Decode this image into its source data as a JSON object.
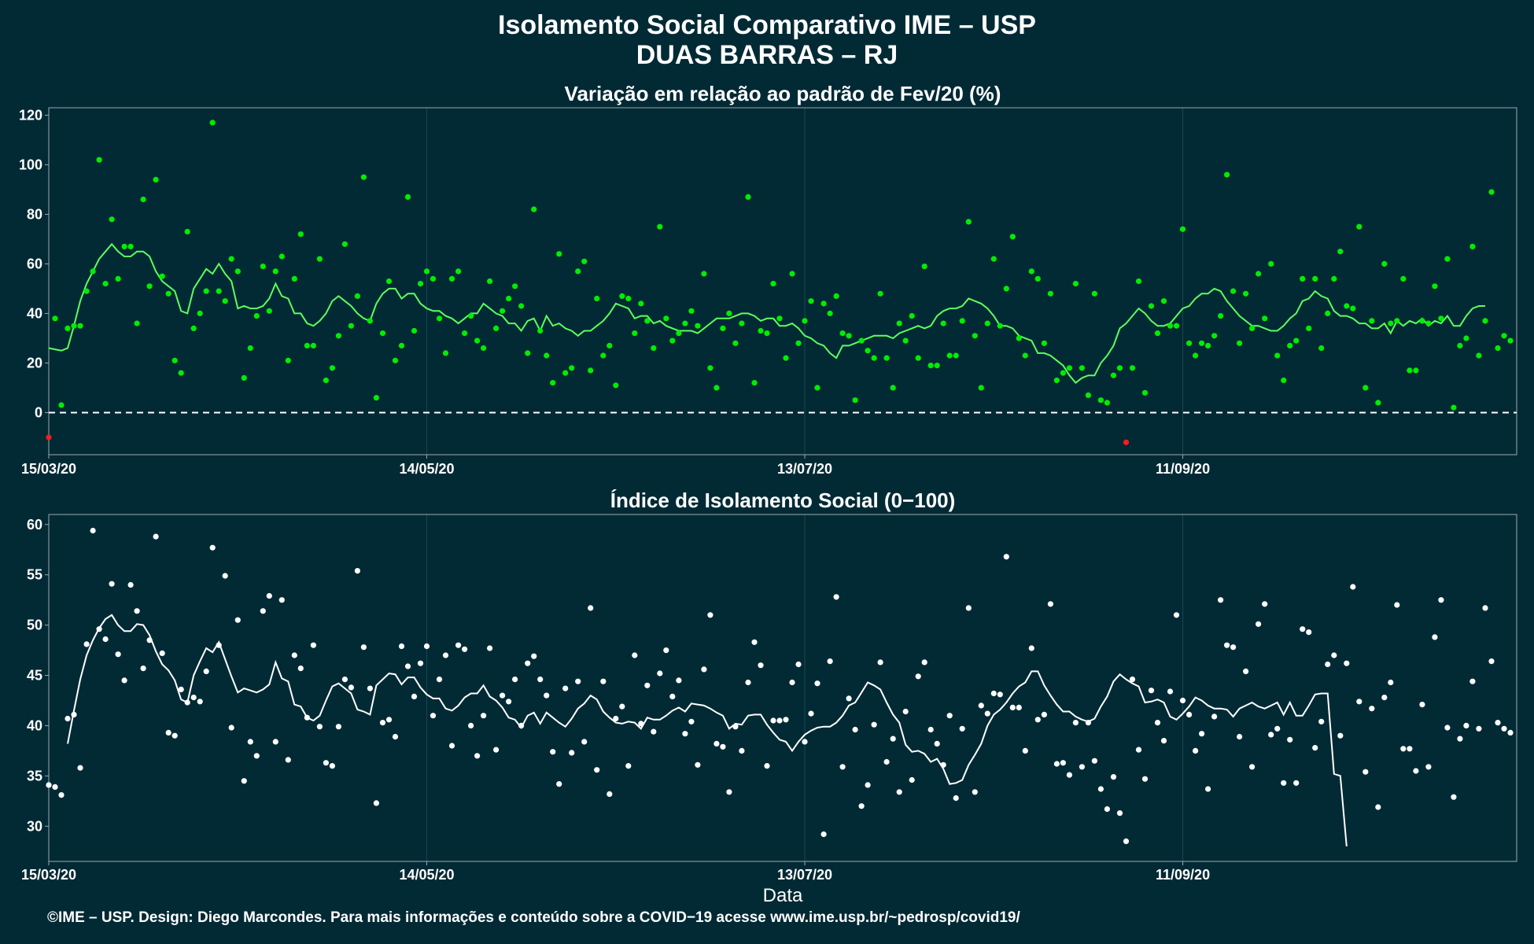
{
  "title": "Isolamento Social Comparativo IME – USP",
  "subtitle": "DUAS BARRAS – RJ",
  "footer": "©IME – USP. Design: Diego Marcondes. Para mais informações e conteúdo sobre a COVID−19 acesse www.ime.usp.br/~pedrosp/covid19/",
  "colors": {
    "background": "#022a35",
    "grid": "#1b4752",
    "frame": "#9aa9ad",
    "variation_points": "#00ee00",
    "variation_line": "#5cff5c",
    "negative_points": "#ff1a1a",
    "index_points": "#ffffff",
    "index_line": "#ffffff",
    "zero_line": "#ffffff"
  },
  "chart_data": [
    {
      "type": "scatter",
      "title": "Variação em relação ao padrão de Fev/20 (%)",
      "xlabel": "",
      "ylabel": "",
      "x_start_date": "15/03/20",
      "x_tick_labels": [
        "15/03/20",
        "14/05/20",
        "13/07/20",
        "11/09/20"
      ],
      "x_tick_days": [
        0,
        60,
        120,
        180
      ],
      "xlim_days": [
        0,
        233
      ],
      "yticks": [
        0,
        20,
        40,
        60,
        80,
        100,
        120
      ],
      "ylim": [
        -17,
        123
      ],
      "reference_line": 0,
      "grid": true,
      "series": [
        {
          "name": "",
          "kind": "points",
          "values": [
            -10,
            38,
            3,
            34,
            35,
            35,
            49,
            57,
            102,
            52,
            78,
            54,
            67,
            67,
            36,
            86,
            51,
            94,
            55,
            48,
            21,
            16,
            73,
            34,
            40,
            49,
            117,
            49,
            45,
            62,
            57,
            14,
            26,
            39,
            59,
            41,
            57,
            63,
            21,
            54,
            72,
            27,
            27,
            62,
            13,
            18,
            31,
            68,
            35,
            47,
            95,
            37,
            6,
            32,
            53,
            21,
            27,
            87,
            33,
            52,
            57,
            54,
            38,
            24,
            54,
            57,
            32,
            39,
            29,
            26,
            53,
            34,
            41,
            46,
            51,
            43,
            24,
            82,
            33,
            23,
            12,
            64,
            16,
            18,
            57,
            61,
            17,
            46,
            23,
            27,
            11,
            47,
            46,
            32,
            44,
            37,
            26,
            75,
            38,
            29,
            32,
            36,
            41,
            35,
            56,
            18,
            10,
            34,
            40,
            28,
            36,
            87,
            12,
            33,
            32,
            52,
            38,
            22,
            56,
            28,
            37,
            45,
            10,
            44,
            40,
            47,
            32,
            31,
            5,
            29,
            25,
            22,
            48,
            22,
            10,
            36,
            29,
            39,
            22,
            59,
            19,
            19,
            36,
            23,
            23,
            37,
            77,
            31,
            10,
            36,
            62,
            35,
            50,
            71,
            30,
            23,
            57,
            54,
            28,
            48,
            13,
            16,
            18,
            52,
            18,
            7,
            48,
            5,
            4,
            15,
            18,
            -12,
            18,
            53,
            8,
            43,
            32,
            45,
            35,
            35,
            74,
            28,
            23,
            28,
            27,
            31,
            39,
            96,
            49,
            28,
            48,
            34,
            56,
            38,
            60,
            23,
            13,
            27,
            29,
            54,
            34,
            54,
            26,
            40,
            54,
            65,
            43,
            42,
            75,
            10,
            37,
            4,
            60,
            36,
            37,
            54,
            17,
            17,
            37,
            36,
            51,
            38,
            62,
            2,
            27,
            30,
            67,
            23,
            37,
            89,
            26,
            31,
            29
          ]
        },
        {
          "name": "",
          "kind": "moving_average",
          "values": [
            26,
            25.5,
            25,
            26,
            35,
            45,
            52,
            57,
            62,
            65,
            68,
            65,
            63,
            63,
            65,
            65,
            63,
            57,
            53,
            51,
            49,
            41,
            40,
            50,
            54,
            58,
            56,
            60,
            56,
            53,
            42,
            43,
            42,
            42,
            43,
            46,
            52,
            47,
            46,
            40,
            40,
            36,
            35,
            37,
            40,
            45,
            47,
            45,
            43,
            40,
            38,
            37,
            44,
            48,
            50,
            50,
            46,
            48,
            48,
            44,
            42,
            41,
            41,
            39,
            38,
            36,
            38,
            40,
            40,
            44,
            42,
            40,
            39,
            36,
            36,
            33,
            37,
            38,
            33,
            39,
            35,
            36,
            34,
            33,
            31,
            33,
            33,
            35,
            37,
            40,
            44,
            43,
            42,
            38,
            39,
            39,
            36,
            37,
            35,
            34,
            33,
            33,
            33,
            32,
            34,
            36,
            38,
            38,
            38,
            39,
            40,
            40,
            39,
            37,
            38,
            38,
            35,
            35,
            36,
            34,
            31,
            30,
            28,
            27,
            24,
            22,
            27,
            27,
            28,
            29,
            30,
            31,
            31,
            31,
            30,
            32,
            33,
            34,
            35,
            34,
            35,
            39,
            41,
            42,
            42,
            43,
            46,
            45,
            44,
            42,
            39,
            35,
            35,
            34,
            31,
            30,
            29,
            24,
            24,
            23,
            21,
            19,
            15,
            12,
            14,
            15,
            15,
            20,
            23,
            27,
            34,
            36,
            39,
            42,
            40,
            37,
            35,
            35,
            36,
            39,
            42,
            43,
            46,
            48,
            48,
            50,
            49,
            45,
            42,
            39,
            37,
            35,
            35,
            34,
            33,
            33,
            35,
            38,
            40,
            45,
            46,
            49,
            47,
            46,
            41,
            39,
            39,
            38,
            36,
            36,
            34,
            34,
            36,
            32,
            37,
            35,
            37,
            36,
            38,
            35,
            37,
            36,
            39,
            35,
            35,
            39,
            42,
            43,
            43
          ]
        }
      ]
    },
    {
      "type": "scatter",
      "title": "Índice de Isolamento Social (0−100)",
      "xlabel": "Data",
      "ylabel": "",
      "x_start_date": "15/03/20",
      "x_tick_labels": [
        "15/03/20",
        "14/05/20",
        "13/07/20",
        "11/09/20"
      ],
      "x_tick_days": [
        0,
        60,
        120,
        180
      ],
      "xlim_days": [
        0,
        233
      ],
      "yticks": [
        30,
        35,
        40,
        45,
        50,
        55,
        60
      ],
      "ylim": [
        26.5,
        61
      ],
      "grid": true,
      "series": [
        {
          "name": "",
          "kind": "points",
          "values": [
            34.1,
            33.9,
            33.1,
            40.7,
            41.1,
            35.8,
            48.1,
            59.4,
            49.6,
            48.6,
            54.1,
            47.1,
            44.5,
            54.0,
            51.4,
            45.7,
            48.5,
            58.8,
            47.2,
            39.3,
            39.0,
            43.6,
            42.3,
            42.8,
            42.4,
            45.4,
            57.7,
            48.0,
            54.9,
            39.8,
            50.5,
            34.5,
            38.4,
            37.0,
            51.4,
            52.9,
            38.4,
            52.5,
            36.6,
            47.0,
            45.7,
            40.8,
            48.0,
            39.9,
            36.3,
            36.0,
            39.9,
            44.6,
            43.8,
            55.4,
            47.8,
            43.7,
            32.3,
            40.3,
            40.6,
            38.9,
            47.9,
            45.9,
            42.9,
            46.2,
            47.9,
            41.0,
            44.6,
            47.0,
            38.0,
            48.0,
            47.6,
            40.0,
            37.0,
            41.0,
            47.7,
            37.6,
            43.0,
            42.4,
            44.6,
            40.0,
            46.2,
            46.9,
            44.6,
            43.0,
            37.4,
            34.2,
            43.7,
            37.3,
            44.4,
            38.4,
            51.7,
            35.6,
            44.4,
            33.2,
            40.7,
            41.9,
            36.0,
            47.0,
            40.2,
            44.0,
            39.4,
            45.2,
            47.5,
            42.9,
            44.5,
            39.2,
            40.4,
            36.1,
            45.6,
            51.0,
            38.2,
            37.9,
            33.4,
            39.9,
            37.5,
            44.3,
            48.3,
            46.0,
            36.0,
            40.5,
            40.5,
            40.6,
            44.3,
            46.1,
            38.4,
            41.2,
            44.2,
            29.2,
            46.4,
            52.8,
            35.9,
            42.7,
            39.6,
            32.0,
            34.1,
            40.1,
            46.3,
            36.4,
            38.7,
            33.4,
            41.4,
            34.6,
            44.9,
            46.3,
            39.6,
            38.2,
            36.1,
            41.0,
            32.8,
            39.7,
            51.7,
            33.4,
            42.0,
            41.2,
            43.2,
            43.1,
            56.8,
            41.8,
            41.8,
            37.5,
            47.7,
            40.6,
            41.1,
            52.1,
            36.2,
            36.3,
            35.1,
            40.3,
            35.9,
            40.3,
            36.5,
            33.7,
            31.7,
            34.9,
            31.3,
            28.5,
            44.6,
            37.6,
            34.7,
            43.5,
            40.3,
            38.5,
            43.4,
            51.0,
            42.5,
            41.1,
            37.5,
            39.2,
            33.7,
            40.9,
            52.5,
            48.0,
            47.8,
            38.9,
            45.4,
            35.9,
            50.1,
            52.1,
            39.1,
            39.7,
            34.3,
            38.6,
            34.3,
            49.6,
            49.3,
            37.8,
            40.4,
            46.1,
            47.0,
            39.0,
            46.2,
            53.8,
            42.4,
            35.4,
            41.7,
            31.9,
            42.8,
            44.3,
            52.0,
            37.7,
            37.7,
            35.5,
            42.1,
            35.9,
            48.8,
            52.5,
            39.8,
            32.9,
            38.7,
            40.0,
            44.4,
            39.7,
            51.7,
            46.4,
            40.3,
            39.7,
            39.3
          ]
        },
        {
          "name": "",
          "kind": "moving_average",
          "values": [
            null,
            null,
            null,
            38.2,
            41.5,
            44.6,
            47.0,
            48.5,
            49.7,
            50.6,
            51.0,
            50.0,
            49.4,
            49.4,
            50.1,
            50.0,
            49.0,
            47.4,
            46.1,
            45.5,
            44.5,
            42.6,
            42.3,
            45.0,
            46.4,
            47.7,
            47.3,
            48.3,
            46.6,
            44.9,
            43.3,
            43.7,
            43.5,
            43.3,
            43.6,
            44.1,
            46.3,
            44.7,
            44.4,
            42.1,
            41.9,
            40.8,
            40.5,
            41.0,
            42.5,
            43.9,
            44.2,
            43.7,
            43.2,
            41.6,
            41.4,
            41.1,
            44.0,
            44.6,
            45.2,
            45.1,
            44.1,
            44.8,
            44.8,
            43.8,
            43.1,
            42.7,
            42.7,
            41.7,
            41.5,
            42.0,
            42.8,
            43.2,
            43.2,
            44.0,
            42.9,
            42.5,
            41.8,
            40.8,
            40.6,
            39.8,
            41.0,
            41.3,
            40.2,
            41.3,
            40.8,
            40.3,
            39.9,
            40.7,
            41.7,
            42.2,
            43.0,
            42.6,
            41.4,
            40.8,
            40.3,
            40.2,
            40.4,
            40.3,
            39.7,
            40.8,
            40.6,
            40.6,
            41.0,
            41.5,
            41.8,
            41.4,
            42.2,
            42.1,
            42.0,
            41.7,
            41.3,
            41.0,
            39.7,
            40.2,
            40.1,
            41.0,
            41.1,
            41.1,
            40.1,
            39.3,
            38.6,
            38.4,
            37.5,
            38.4,
            39.1,
            39.5,
            39.8,
            39.9,
            39.9,
            40.3,
            41.0,
            42.0,
            42.3,
            43.3,
            44.3,
            44.0,
            43.6,
            42.3,
            41.1,
            40.3,
            38.1,
            37.4,
            37.5,
            37.2,
            36.4,
            36.7,
            35.7,
            34.2,
            34.3,
            34.6,
            36.1,
            37.1,
            38.2,
            40.0,
            41.1,
            41.6,
            42.3,
            43.2,
            43.9,
            44.3,
            45.4,
            45.4,
            44.0,
            43.0,
            42.1,
            41.4,
            41.4,
            40.9,
            40.6,
            40.4,
            40.7,
            41.9,
            42.9,
            44.4,
            45.1,
            44.6,
            44.2,
            43.9,
            42.3,
            42.4,
            42.6,
            42.3,
            40.9,
            40.6,
            41.2,
            41.9,
            42.8,
            42.5,
            42.0,
            41.7,
            41.7,
            41.6,
            40.9,
            41.7,
            42.0,
            42.3,
            41.9,
            41.7,
            42.0,
            42.3,
            41.1,
            42.3,
            41.0,
            41.0,
            42.0,
            43.1,
            43.2,
            43.2,
            35.2,
            35.0,
            28.0
          ]
        }
      ]
    }
  ]
}
